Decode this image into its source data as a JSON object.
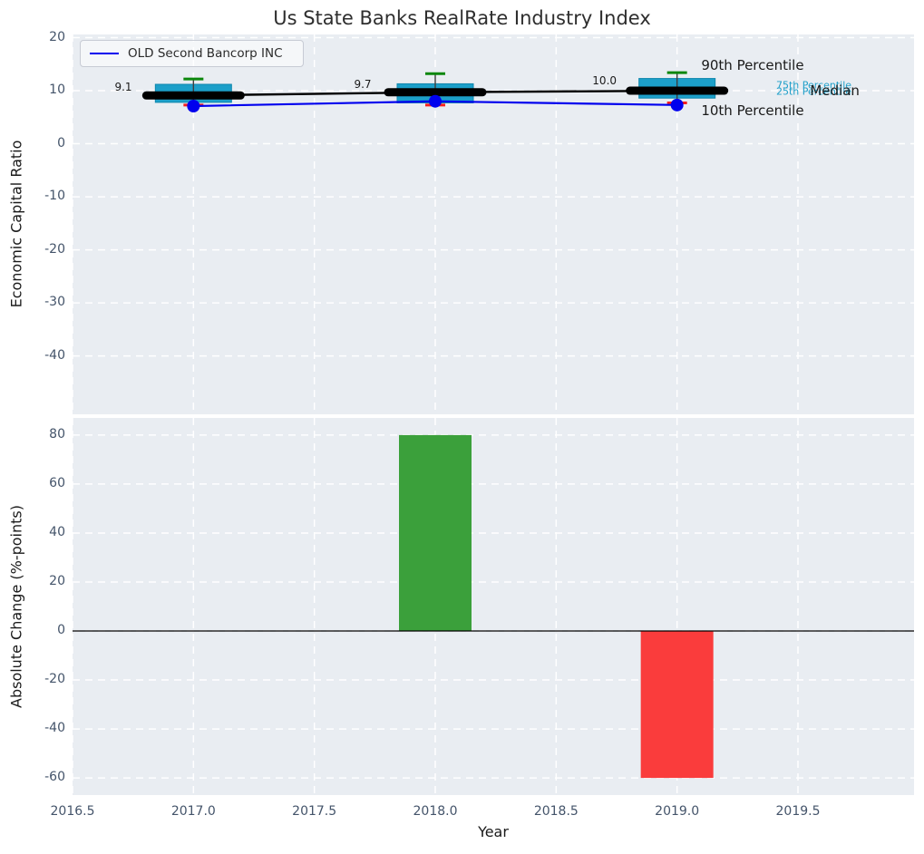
{
  "chart_data": [
    {
      "type": "boxplot",
      "title": "Us State Banks RealRate Industry Index",
      "ylabel": "Economic Capital Ratio",
      "xlim": [
        2016.5,
        2019.98
      ],
      "ylim": [
        -51,
        20.6
      ],
      "yticks": [
        20,
        10,
        0,
        -10,
        -20,
        -30,
        -40
      ],
      "xticks": [
        2016.5,
        2017.0,
        2017.5,
        2018.0,
        2018.5,
        2019.0,
        2019.5
      ],
      "grid": "white-dashed",
      "years": [
        2017,
        2018,
        2019
      ],
      "industry_box": {
        "p90": [
          12.2,
          13.2,
          13.4
        ],
        "q3": [
          11.2,
          11.3,
          12.3
        ],
        "median": [
          9.1,
          9.7,
          10.0
        ],
        "q1": [
          7.8,
          7.7,
          8.6
        ],
        "p10": [
          7.3,
          7.3,
          7.7
        ]
      },
      "company_series": {
        "name": "OLD Second Bancorp INC",
        "values": [
          7.1,
          8.0,
          7.3
        ],
        "color": "#0000ee"
      },
      "median_labels": [
        {
          "text": "9.1",
          "x": 2016.71,
          "y": 10.7
        },
        {
          "text": "9.7",
          "x": 2017.7,
          "y": 11.2
        },
        {
          "text": "10.0",
          "x": 2018.7,
          "y": 11.9
        }
      ],
      "percentile_labels": [
        {
          "text": "90th Percentile",
          "x": 2019.1,
          "y": 14.8,
          "color": "#1a1a1a",
          "size": 15
        },
        {
          "text": "75th Percentile",
          "x": 2019.41,
          "y": 11.0,
          "color": "#1e9fc9",
          "size": 11
        },
        {
          "text": "25th Percentile",
          "x": 2019.41,
          "y": 9.9,
          "color": "#1e9fc9",
          "size": 11
        },
        {
          "text": "Median",
          "x": 2019.55,
          "y": 10.0,
          "color": "#1a1a1a",
          "size": 15
        },
        {
          "text": "10th Percentile",
          "x": 2019.1,
          "y": 6.3,
          "color": "#1a1a1a",
          "size": 15
        }
      ],
      "colors": {
        "box_fill": "#1c9fc9",
        "box_edge": "#0f87ad",
        "whisker": "#3d3d3d",
        "cap_top": "#0c870c",
        "cap_bottom": "#f51f1f",
        "median_line": "#000000",
        "axes_background": "#e9edf2",
        "tick_label": "#44546a"
      }
    },
    {
      "type": "bar",
      "ylabel": "Absolute Change (%-points)",
      "xlabel": "Year",
      "xlim": [
        2016.5,
        2019.98
      ],
      "ylim": [
        -67,
        87
      ],
      "yticks": [
        80,
        60,
        40,
        20,
        0,
        -20,
        -40,
        -60
      ],
      "xticks": [
        2016.5,
        2017.0,
        2017.5,
        2018.0,
        2018.5,
        2019.0,
        2019.5
      ],
      "x": [
        2018,
        2019
      ],
      "values": [
        80,
        -60
      ],
      "bar_width": 0.3,
      "bar_colors": [
        "#3ba03b",
        "#fa3c3c"
      ],
      "zero_line": true
    }
  ]
}
